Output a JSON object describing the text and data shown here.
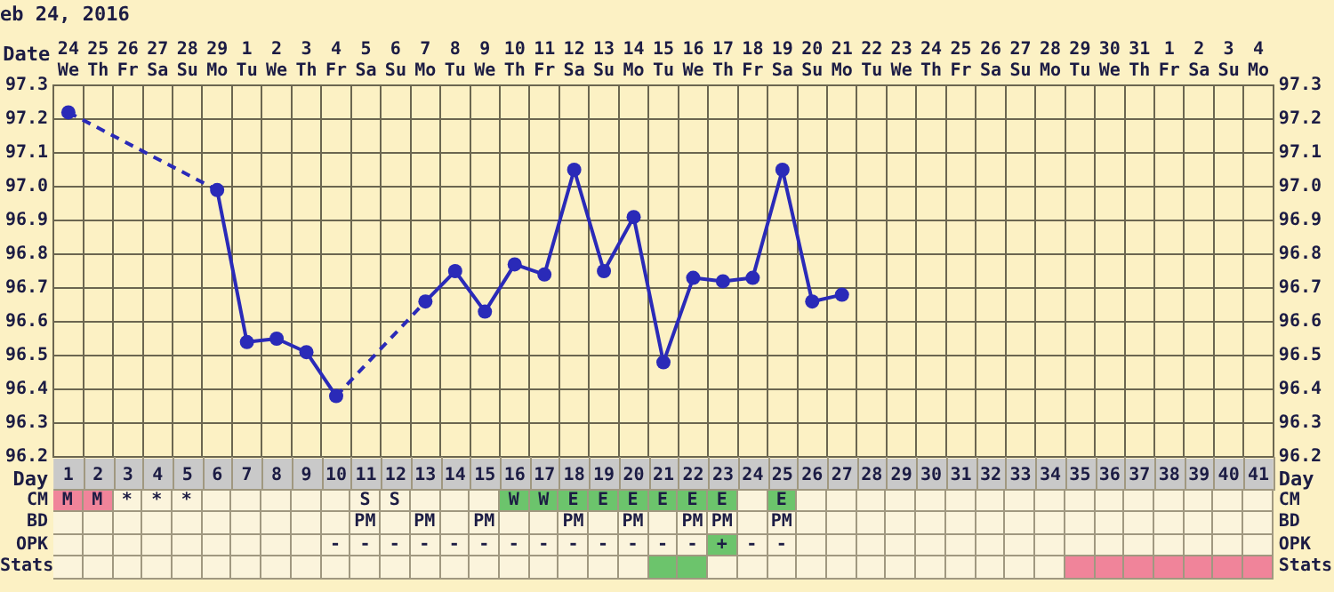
{
  "chart_data": [
    {
      "type": "line",
      "title": "eb 24, 2016",
      "xlabel": "Date",
      "categories": [
        "24 We",
        "25 Th",
        "26 Fr",
        "27 Sa",
        "28 Su",
        "29 Mo",
        "1 Tu",
        "2 We",
        "3 Th",
        "4 Fr",
        "5 Sa",
        "6 Su",
        "7 Mo",
        "8 Tu",
        "9 We",
        "10 Th",
        "11 Fr",
        "12 Sa",
        "13 Su",
        "14 Mo",
        "15 Tu",
        "16 We",
        "17 Th",
        "18 Fr",
        "19 Sa",
        "20 Su",
        "21 Mo",
        "22 Tu",
        "23 We",
        "24 Th",
        "25 Fr",
        "26 Sa",
        "27 Su",
        "28 Mo",
        "29 Tu",
        "30 We",
        "31 Th",
        "1 Fr",
        "2 Sa",
        "3 Su",
        "4 Mo"
      ],
      "series": [
        {
          "color": "#2a2ab8",
          "values": [
            97.22,
            null,
            null,
            null,
            null,
            96.99,
            96.54,
            96.55,
            96.51,
            96.38,
            null,
            null,
            96.66,
            96.75,
            96.63,
            96.77,
            96.74,
            97.05,
            96.75,
            96.91,
            96.48,
            96.73,
            96.72,
            96.73,
            97.05,
            96.66,
            96.68,
            null,
            null,
            null,
            null,
            null,
            null,
            null,
            null,
            null,
            null,
            null,
            null,
            null,
            null
          ]
        }
      ],
      "ylim": [
        96.2,
        97.3
      ],
      "yticks": [
        {
          "value": 96.2,
          "label": "96.2"
        },
        {
          "value": 96.3,
          "label": "96.3"
        },
        {
          "value": 96.4,
          "label": "96.4"
        },
        {
          "value": 96.5,
          "label": "96.5"
        },
        {
          "value": 96.6,
          "label": "96.6"
        },
        {
          "value": 96.7,
          "label": "96.7"
        },
        {
          "value": 96.8,
          "label": "96.8"
        },
        {
          "value": 96.9,
          "label": "96.9"
        },
        {
          "value": 97.0,
          "label": "97.0"
        },
        {
          "value": 97.1,
          "label": "97.1"
        },
        {
          "value": 97.2,
          "label": "97.2"
        },
        {
          "value": 97.3,
          "label": "97.3"
        }
      ],
      "y2lim": [
        96.2,
        97.3
      ],
      "y2ticks": [
        {
          "value": 96.2,
          "label": "96.2"
        },
        {
          "value": 96.3,
          "label": "96.3"
        },
        {
          "value": 96.4,
          "label": "96.4"
        },
        {
          "value": 96.5,
          "label": "96.5"
        },
        {
          "value": 96.6,
          "label": "96.6"
        },
        {
          "value": 96.7,
          "label": "96.7"
        },
        {
          "value": 96.8,
          "label": "96.8"
        },
        {
          "value": 96.9,
          "label": "96.9"
        },
        {
          "value": 97.0,
          "label": "97.0"
        },
        {
          "value": 97.1,
          "label": "97.1"
        },
        {
          "value": 97.2,
          "label": "97.2"
        },
        {
          "value": 97.3,
          "label": "97.3"
        }
      ],
      "x2label": "Day",
      "x2lim": [
        0.5,
        41.5
      ],
      "x2ticks": [
        1,
        2,
        3,
        4,
        5,
        6,
        7,
        8,
        9,
        10,
        11,
        12,
        13,
        14,
        15,
        16,
        17,
        18,
        19,
        20,
        21,
        22,
        23,
        24,
        25,
        26,
        27,
        28,
        29,
        30,
        31,
        32,
        33,
        34,
        35,
        36,
        37,
        38,
        39,
        40,
        41
      ],
      "grid": true,
      "marker": "circle",
      "line_style": "solid"
    },
    {
      "type": "other",
      "categories": [
        null,
        null,
        null,
        null,
        null,
        null,
        null,
        null,
        null,
        null,
        null,
        null,
        null,
        null,
        null,
        null,
        null,
        null,
        null,
        null,
        null,
        null,
        null,
        null,
        null,
        null,
        null,
        null,
        null,
        null,
        null,
        null,
        null,
        null,
        null,
        null,
        null,
        null,
        null,
        null,
        null
      ],
      "y_categories": [
        "CM",
        "BD",
        "OPK",
        "Stats"
      ],
      "y2_categories": [
        "CM",
        "BD",
        "OPK",
        "Stats"
      ],
      "cell_labels": [
        [
          "M",
          "M",
          "*",
          "*",
          "*",
          null,
          null,
          null,
          null,
          null,
          "S",
          "S",
          null,
          null,
          null,
          "W",
          "W",
          "E",
          "E",
          "E",
          "E",
          "E",
          "E",
          null,
          "E",
          null,
          null,
          null,
          null,
          null,
          null,
          null,
          null,
          null,
          null,
          null,
          null,
          null,
          null,
          null,
          null
        ],
        [
          null,
          null,
          null,
          null,
          null,
          null,
          null,
          null,
          null,
          null,
          "PM",
          null,
          "PM",
          null,
          "PM",
          null,
          null,
          "PM",
          null,
          "PM",
          null,
          "PM",
          "PM",
          null,
          "PM",
          null,
          null,
          null,
          null,
          null,
          null,
          null,
          null,
          null,
          null,
          null,
          null,
          null,
          null,
          null,
          null
        ],
        [
          null,
          null,
          null,
          null,
          null,
          null,
          null,
          null,
          null,
          "-",
          "-",
          "-",
          "-",
          "-",
          "-",
          "-",
          "-",
          "-",
          "-",
          "-",
          "-",
          "-",
          "+",
          "-",
          "-",
          null,
          null,
          null,
          null,
          null,
          null,
          null,
          null,
          null,
          null,
          null,
          null,
          null,
          null,
          null,
          null
        ],
        [
          null,
          null,
          null,
          null,
          null,
          null,
          null,
          null,
          null,
          null,
          null,
          null,
          null,
          null,
          null,
          null,
          null,
          null,
          null,
          null,
          null,
          null,
          null,
          null,
          null,
          null,
          null,
          null,
          null,
          null,
          null,
          null,
          null,
          null,
          null,
          null,
          null,
          null,
          null,
          null,
          null
        ]
      ],
      "colors": [
        [
          "#f0849a",
          "#f0849a",
          null,
          null,
          null,
          null,
          null,
          null,
          null,
          null,
          null,
          null,
          null,
          null,
          null,
          "#6cc46c",
          "#6cc46c",
          "#6cc46c",
          "#6cc46c",
          "#6cc46c",
          "#6cc46c",
          "#6cc46c",
          "#6cc46c",
          null,
          "#6cc46c",
          null,
          null,
          null,
          null,
          null,
          null,
          null,
          null,
          null,
          null,
          null,
          null,
          null,
          null,
          null,
          null
        ],
        null,
        [
          null,
          null,
          null,
          null,
          null,
          null,
          null,
          null,
          null,
          null,
          null,
          null,
          null,
          null,
          null,
          null,
          null,
          null,
          null,
          null,
          null,
          null,
          "#6cc46c",
          null,
          null,
          null,
          null,
          null,
          null,
          null,
          null,
          null,
          null,
          null,
          null,
          null,
          null,
          null,
          null,
          null,
          null
        ],
        [
          null,
          null,
          null,
          null,
          null,
          null,
          null,
          null,
          null,
          null,
          null,
          null,
          null,
          null,
          null,
          null,
          null,
          null,
          null,
          null,
          "#6cc46c",
          "#6cc46c",
          null,
          null,
          null,
          null,
          null,
          null,
          null,
          null,
          null,
          null,
          null,
          null,
          "#f0849a",
          "#f0849a",
          "#f0849a",
          "#f0849a",
          "#f0849a",
          "#f0849a",
          "#f0849a"
        ]
      ]
    }
  ]
}
